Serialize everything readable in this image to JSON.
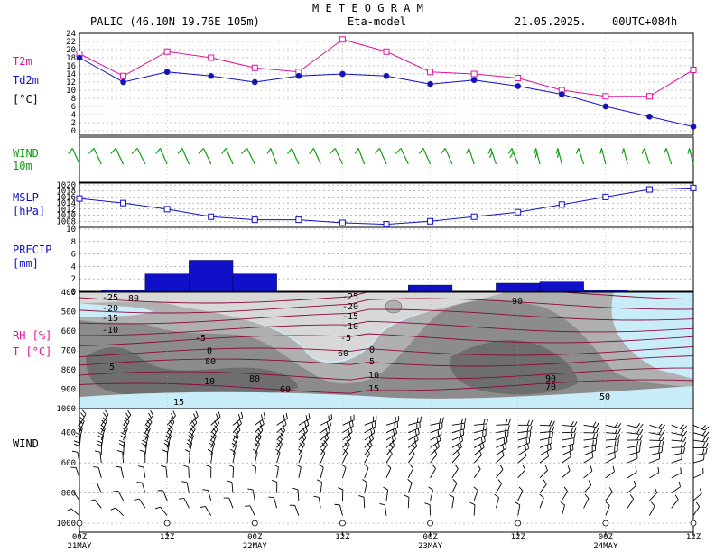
{
  "header": {
    "title": "M E T E O G R A M",
    "station": "PALIC (46.10N 19.76E  105m)",
    "model": "Eta-model",
    "date": "21.05.2025.",
    "run": "00UTC+084h"
  },
  "labels": {
    "t2m": "T2m",
    "td2m": "Td2m",
    "temp_unit": "[°C]",
    "wind10_a": "WIND",
    "wind10_b": "10m",
    "mslp_a": "MSLP",
    "mslp_b": "[hPa]",
    "precip_a": "PRECIP",
    "precip_b": "[mm]",
    "rh_a": "RH [%]",
    "rh_b": "T [°C]",
    "wind_prof": "WIND"
  },
  "colors": {
    "t2m": "#e0139a",
    "td2m": "#1010c8",
    "mslp": "#1010c8",
    "precip": "#1010c8",
    "wind10": "#10a010",
    "isotherm": "#8b0a3c",
    "rh_dry": "#c8ecf8"
  },
  "chart_data": [
    {
      "type": "line",
      "name": "temperature",
      "x_hours": [
        0,
        6,
        12,
        18,
        24,
        30,
        36,
        42,
        48,
        54,
        60,
        66,
        72,
        78,
        84
      ],
      "series": [
        {
          "name": "T2m",
          "values": [
            19,
            13.5,
            19.5,
            18,
            15.5,
            14.5,
            22.5,
            19.5,
            14.5,
            14,
            13,
            10,
            8.5,
            8.5,
            15
          ]
        },
        {
          "name": "Td2m",
          "values": [
            18,
            12,
            14.5,
            13.5,
            12,
            13.5,
            14,
            13.5,
            11.5,
            12.5,
            11,
            9,
            6,
            3.5,
            1
          ]
        }
      ],
      "yticks": [
        0,
        2,
        4,
        6,
        8,
        10,
        12,
        14,
        16,
        18,
        20,
        22,
        24
      ],
      "ylim": [
        0,
        24
      ],
      "grid": true
    },
    {
      "type": "line",
      "name": "wind10m",
      "x_hours": [
        0,
        3,
        6,
        9,
        12,
        15,
        18,
        21,
        24,
        27,
        30,
        33,
        36,
        39,
        42,
        45,
        48,
        51,
        54,
        57,
        60,
        63,
        66,
        69,
        72,
        75,
        78,
        81,
        84
      ],
      "wind_dir_deg": [
        300,
        290,
        290,
        280,
        300,
        300,
        290,
        300,
        280,
        310,
        300,
        300,
        290,
        310,
        300,
        290,
        300,
        300,
        320,
        320,
        310,
        330,
        330,
        320,
        330,
        330,
        320,
        320,
        330
      ],
      "wind_kt": [
        5,
        5,
        5,
        5,
        5,
        5,
        5,
        5,
        5,
        5,
        5,
        5,
        5,
        5,
        5,
        5,
        5,
        5,
        5,
        10,
        10,
        10,
        10,
        5,
        5,
        5,
        5,
        5,
        5
      ]
    },
    {
      "type": "line",
      "name": "mslp",
      "x_hours": [
        0,
        6,
        12,
        18,
        24,
        30,
        36,
        42,
        48,
        54,
        60,
        66,
        72,
        78,
        84
      ],
      "series": [
        {
          "name": "MSLP",
          "values": [
            1015.5,
            1014,
            1012,
            1009.5,
            1008.5,
            1008.5,
            1007.5,
            1007,
            1008,
            1009.5,
            1011,
            1013.5,
            1016,
            1018.5,
            1019
          ]
        }
      ],
      "yticks": [
        1008,
        1010,
        1012,
        1014,
        1016,
        1018,
        1020
      ],
      "ylim": [
        1006,
        1020
      ],
      "grid": true
    },
    {
      "type": "bar",
      "name": "precip",
      "x_hours": [
        6,
        12,
        18,
        24,
        30,
        36,
        42,
        48,
        54,
        60,
        66,
        72,
        78
      ],
      "values": [
        0.2,
        2.8,
        5.0,
        2.8,
        0,
        0,
        0,
        1.0,
        0,
        1.3,
        1.5,
        0.2,
        0
      ],
      "yticks": [
        0,
        2,
        4,
        6,
        8,
        10
      ],
      "ylim": [
        0,
        10
      ],
      "grid": true
    },
    {
      "type": "heatmap",
      "name": "rh_temperature_crosssection",
      "yticks": [
        400,
        500,
        600,
        700,
        800,
        900,
        1000
      ],
      "isotherm_labels": [
        "-25",
        "-20",
        "-15",
        "-10",
        "-5",
        "0",
        "5",
        "10",
        "15"
      ],
      "rh_labels": [
        "80",
        "60",
        "80",
        "70",
        "80",
        "60",
        "90",
        "90",
        "70",
        "50"
      ],
      "x_hours": [
        0,
        12,
        24,
        36,
        48,
        60,
        72,
        84
      ]
    },
    {
      "type": "line",
      "name": "wind_profile",
      "yticks": [
        400,
        600,
        800,
        1000
      ],
      "ylim": [
        1000,
        300
      ],
      "x_hours": [
        0,
        3,
        6,
        9,
        12,
        15,
        18,
        21,
        24,
        27,
        30,
        33,
        36,
        39,
        42,
        45,
        48,
        51,
        54,
        57,
        60,
        63,
        66,
        69,
        72,
        75,
        78,
        81,
        84
      ]
    }
  ],
  "xaxis": {
    "ticks": [
      {
        "hour": 0,
        "label": "00Z",
        "date": "21MAY"
      },
      {
        "hour": 12,
        "label": "12Z",
        "date": ""
      },
      {
        "hour": 24,
        "label": "00Z",
        "date": "22MAY"
      },
      {
        "hour": 36,
        "label": "12Z",
        "date": ""
      },
      {
        "hour": 48,
        "label": "00Z",
        "date": "23MAY"
      },
      {
        "hour": 60,
        "label": "12Z",
        "date": ""
      },
      {
        "hour": 72,
        "label": "00Z",
        "date": "24MAY"
      },
      {
        "hour": 84,
        "label": "12Z",
        "date": ""
      }
    ]
  }
}
